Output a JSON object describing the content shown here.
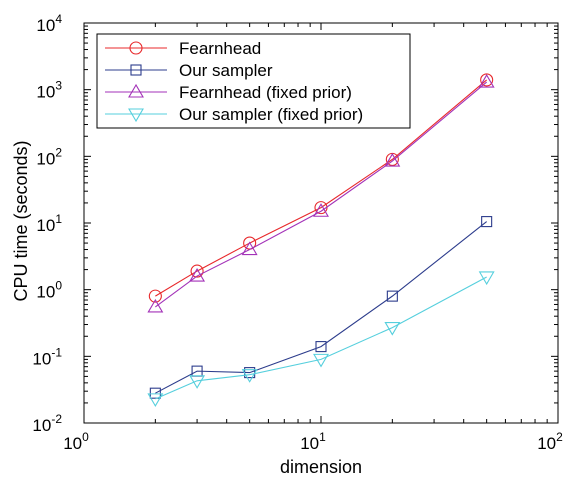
{
  "chart_data": {
    "type": "line",
    "xscale": "log",
    "yscale": "log",
    "xlim": [
      1,
      100
    ],
    "ylim": [
      0.01,
      10000
    ],
    "xlabel": "dimension",
    "ylabel": "CPU time (seconds)",
    "title": "",
    "grid": false,
    "legend_position": "top-left",
    "x_ticks": [
      {
        "value": 1,
        "base": "10",
        "exp": "0"
      },
      {
        "value": 10,
        "base": "10",
        "exp": "1"
      },
      {
        "value": 100,
        "base": "10",
        "exp": "2"
      }
    ],
    "y_ticks": [
      {
        "value": 0.01,
        "base": "10",
        "exp": "-2"
      },
      {
        "value": 0.1,
        "base": "10",
        "exp": "-1"
      },
      {
        "value": 1,
        "base": "10",
        "exp": "0"
      },
      {
        "value": 10,
        "base": "10",
        "exp": "1"
      },
      {
        "value": 100,
        "base": "10",
        "exp": "2"
      },
      {
        "value": 1000,
        "base": "10",
        "exp": "3"
      },
      {
        "value": 10000,
        "base": "10",
        "exp": "4"
      }
    ],
    "x": [
      2,
      3,
      5,
      10,
      20,
      50
    ],
    "series": [
      {
        "name": "Fearnhead",
        "color": "#e8282b",
        "marker": "circle",
        "values": [
          0.8,
          1.9,
          5.0,
          17,
          90,
          1400
        ]
      },
      {
        "name": "Our sampler",
        "color": "#2c3c8c",
        "marker": "square",
        "values": [
          0.028,
          0.06,
          0.057,
          0.14,
          0.8,
          10.5
        ]
      },
      {
        "name": "Fearnhead (fixed prior)",
        "color": "#a332b8",
        "marker": "triangle-up",
        "values": [
          0.55,
          1.6,
          4.0,
          15,
          85,
          1300
        ]
      },
      {
        "name": "Our sampler (fixed prior)",
        "color": "#55cfdd",
        "marker": "triangle-down",
        "values": [
          0.023,
          0.043,
          0.053,
          0.09,
          0.27,
          1.55
        ]
      }
    ]
  }
}
